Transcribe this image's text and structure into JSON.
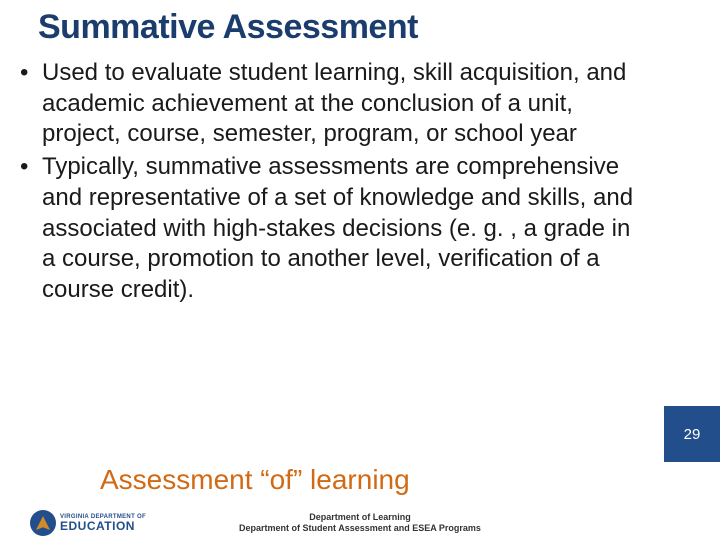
{
  "title": "Summative Assessment",
  "bullets": [
    "Used to evaluate student learning, skill acquisition, and academic achievement at the conclusion of a unit, project, course, semester, program, or school year",
    " Typically, summative assessments are comprehensive and representative of a set of knowledge and skills, and associated with high-stakes decisions (e. g. , a grade in a course, promotion to another level, verification of a course credit)."
  ],
  "subtitle": "Assessment “of” learning",
  "page_number": "29",
  "footer_line1": "Department of Learning",
  "footer_line2": "Department of Student Assessment and ESEA Programs",
  "logo_line1": "VIRGINIA DEPARTMENT OF",
  "logo_line2": "EDUCATION",
  "colors": {
    "title": "#1b3d6d",
    "subtitle": "#d26a14",
    "accent_bar": "#234e8c",
    "page_num": "#ffffff",
    "body_text": "#1a1a1a",
    "background": "#ffffff"
  },
  "typography": {
    "title_fontsize": 34,
    "title_weight": 700,
    "bullet_fontsize": 24,
    "subtitle_fontsize": 28,
    "footer_fontsize": 9,
    "page_num_fontsize": 15
  },
  "layout": {
    "slide_width": 720,
    "slide_height": 540,
    "accent_bar_size": 56
  }
}
